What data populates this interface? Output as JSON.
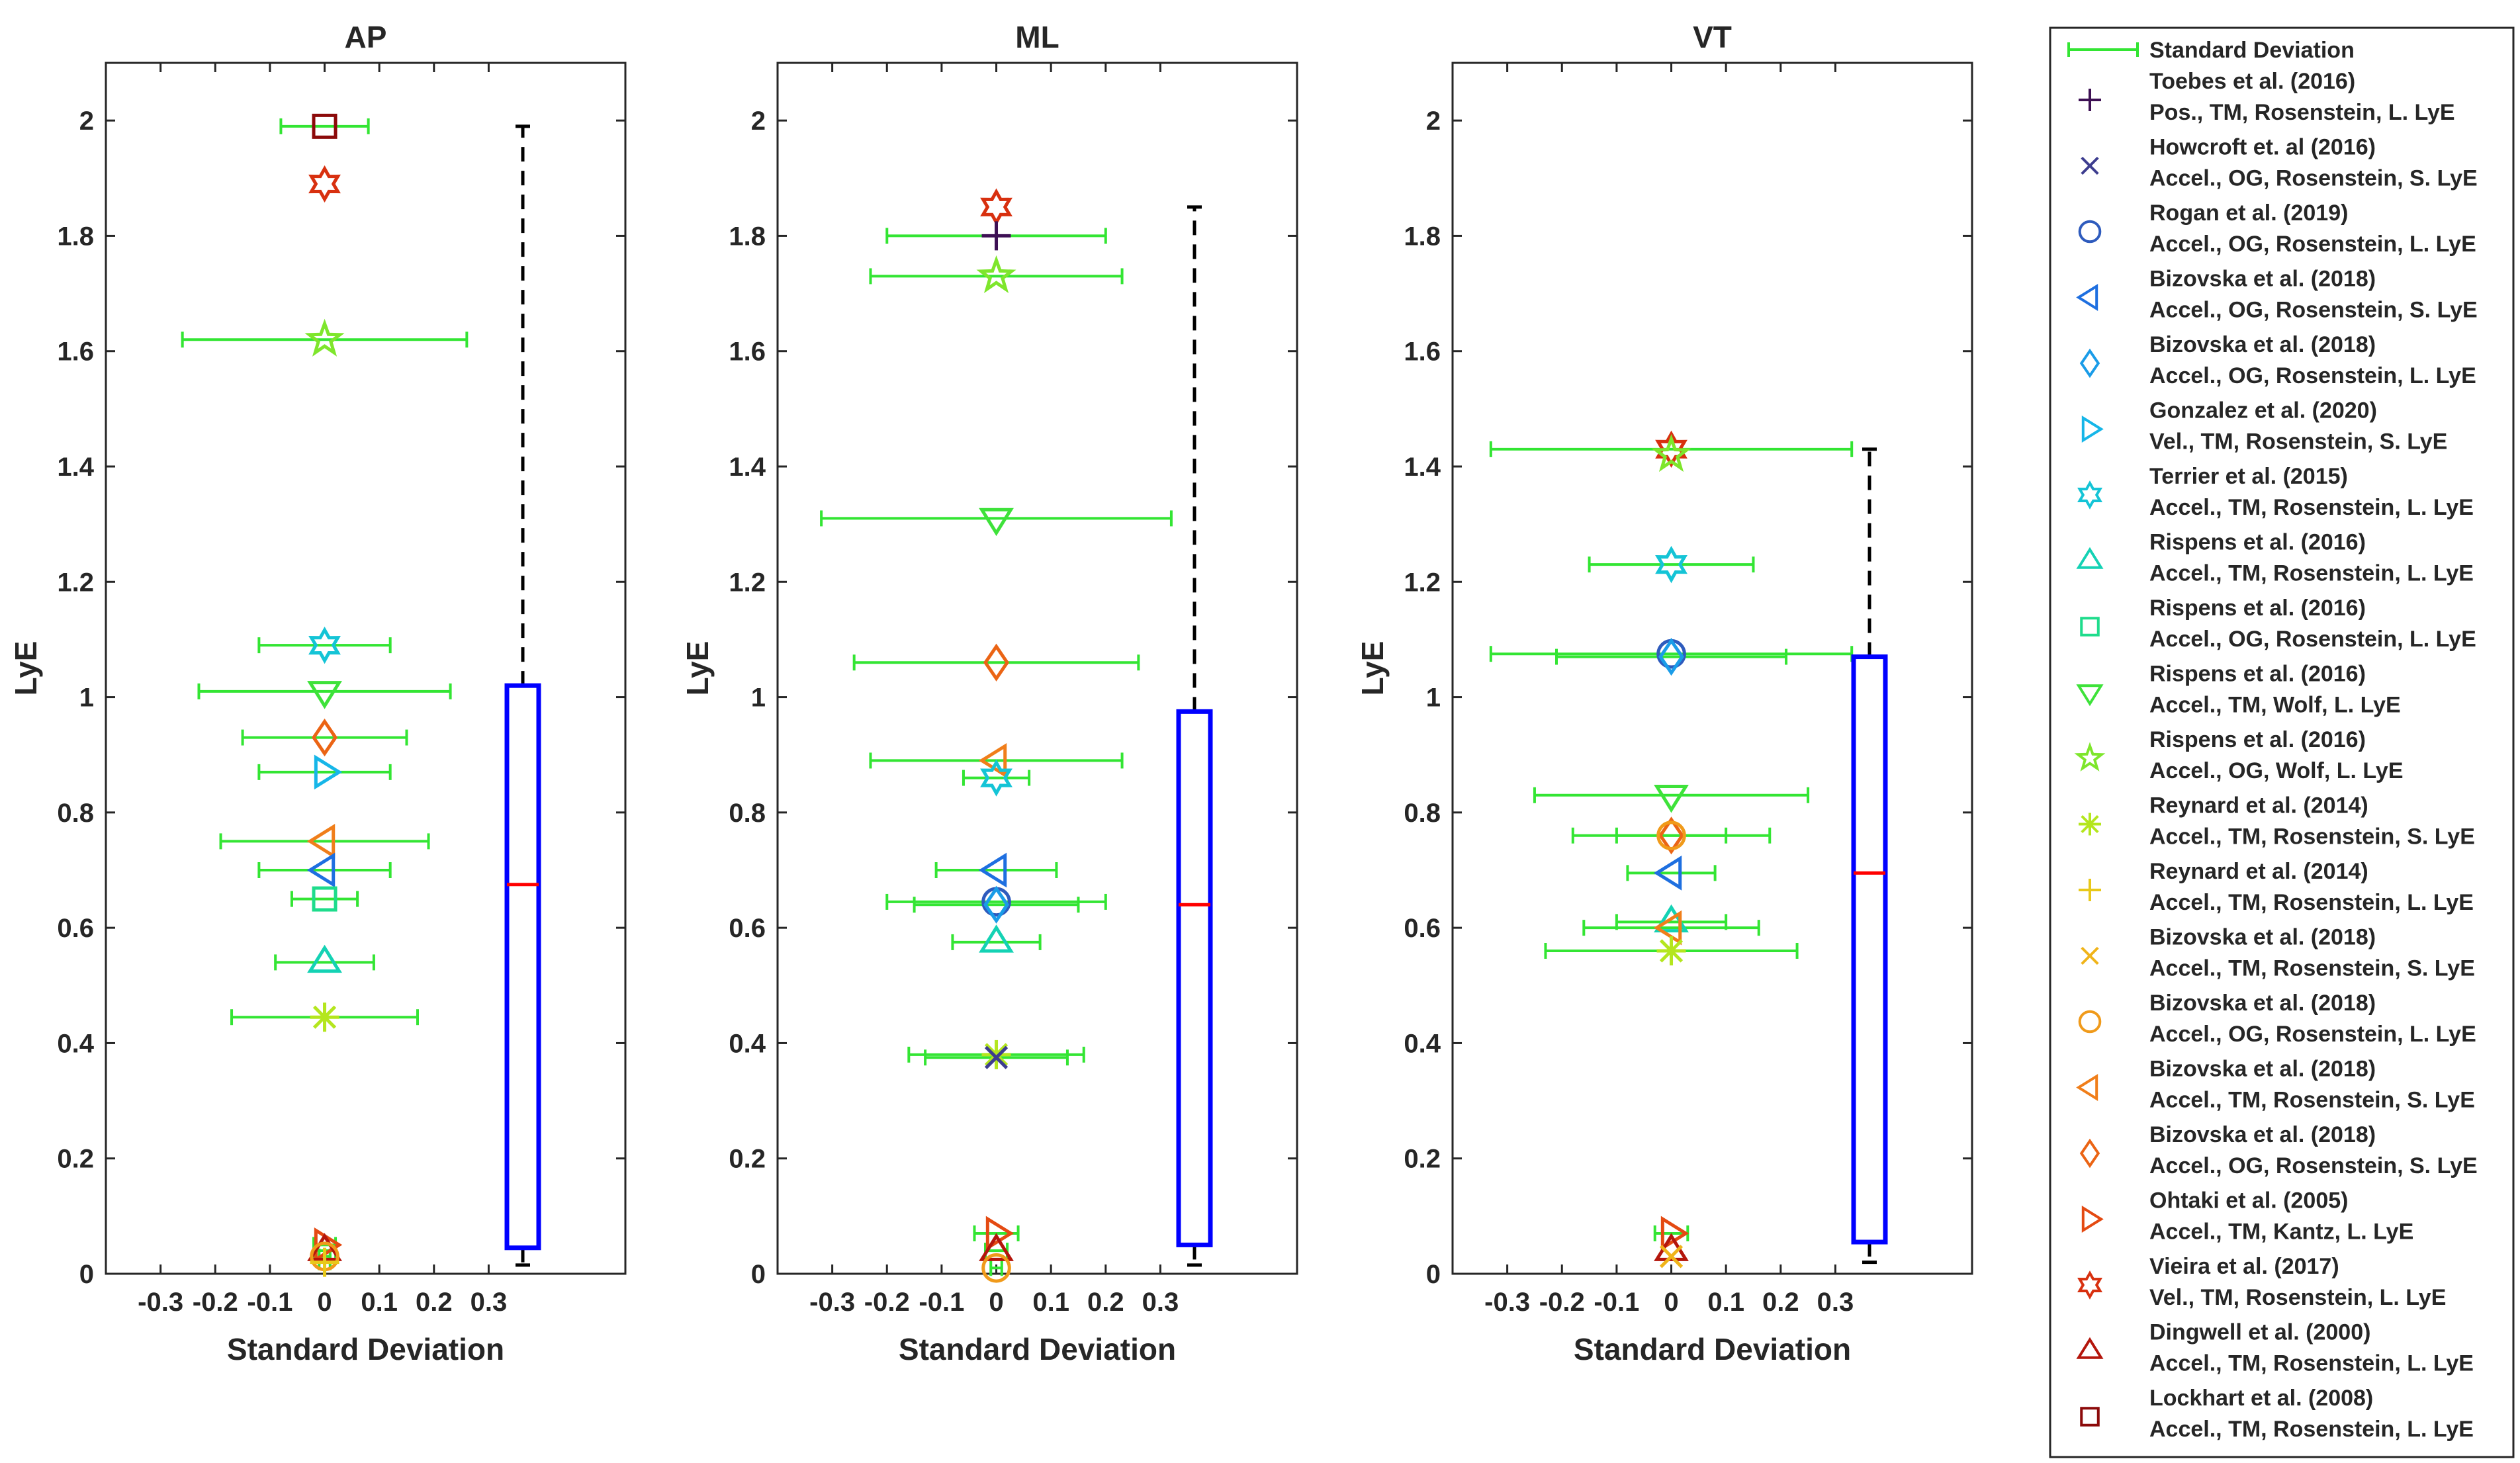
{
  "chart_data": {
    "type": "scatter",
    "common": {
      "ylabel": "LyE",
      "xlabel": "Standard Deviation",
      "xlim": [
        -0.4,
        0.55
      ],
      "ylim": [
        0,
        2.1
      ],
      "xticks": [
        -0.3,
        -0.2,
        -0.1,
        0,
        0.1,
        0.2,
        0.3
      ],
      "xtick_labels": [
        "-0.3",
        "-0.2",
        "-0.1",
        "0",
        "0.1",
        "0.2",
        "0.3"
      ],
      "yticks": [
        0,
        0.2,
        0.4,
        0.6,
        0.8,
        1,
        1.2,
        1.4,
        1.6,
        1.8,
        2
      ],
      "ytick_labels": [
        "0",
        "0.2",
        "0.4",
        "0.6",
        "0.8",
        "1",
        "1.2",
        "1.4",
        "1.6",
        "1.8",
        "2"
      ]
    },
    "styles": [
      {
        "marker": "plus",
        "color": "#3d1054"
      },
      {
        "marker": "x",
        "color": "#3d3d8f"
      },
      {
        "marker": "circle",
        "color": "#2e5bbd"
      },
      {
        "marker": "tri-left",
        "color": "#1e6fe0"
      },
      {
        "marker": "diamond",
        "color": "#1a9ce8"
      },
      {
        "marker": "tri-right",
        "color": "#16b6e8"
      },
      {
        "marker": "hexagram",
        "color": "#14c4d6"
      },
      {
        "marker": "tri-up",
        "color": "#14d2b4"
      },
      {
        "marker": "square",
        "color": "#1edc8c"
      },
      {
        "marker": "tri-down",
        "color": "#3ee23a"
      },
      {
        "marker": "pentagram",
        "color": "#7ee62c"
      },
      {
        "marker": "asterisk",
        "color": "#b4e61e"
      },
      {
        "marker": "plus",
        "color": "#e8c81a"
      },
      {
        "marker": "x",
        "color": "#f0b41a"
      },
      {
        "marker": "circle",
        "color": "#f09a1a"
      },
      {
        "marker": "tri-left",
        "color": "#f07e1a"
      },
      {
        "marker": "diamond",
        "color": "#eb6414"
      },
      {
        "marker": "tri-right",
        "color": "#e44a12"
      },
      {
        "marker": "hexagram",
        "color": "#d8300f"
      },
      {
        "marker": "tri-up",
        "color": "#b4160c"
      },
      {
        "marker": "square",
        "color": "#8c0a0a"
      }
    ],
    "panels": [
      {
        "title": "AP",
        "points": [
          {
            "s": 18,
            "y": 1.89,
            "sd": 0
          },
          {
            "s": 20,
            "y": 1.99,
            "sd": 0.08
          },
          {
            "s": 10,
            "y": 1.62,
            "sd": 0.26
          },
          {
            "s": 6,
            "y": 1.09,
            "sd": 0.12
          },
          {
            "s": 9,
            "y": 1.01,
            "sd": 0.23
          },
          {
            "s": 16,
            "y": 0.93,
            "sd": 0.15
          },
          {
            "s": 5,
            "y": 0.87,
            "sd": 0.12
          },
          {
            "s": 15,
            "y": 0.75,
            "sd": 0.19
          },
          {
            "s": 3,
            "y": 0.7,
            "sd": 0.12
          },
          {
            "s": 8,
            "y": 0.65,
            "sd": 0.06
          },
          {
            "s": 7,
            "y": 0.54,
            "sd": 0.09
          },
          {
            "s": 11,
            "y": 0.445,
            "sd": 0.17
          },
          {
            "s": 17,
            "y": 0.05,
            "sd": 0.02
          },
          {
            "s": 19,
            "y": 0.04,
            "sd": 0.02
          },
          {
            "s": 14,
            "y": 0.03,
            "sd": 0.01
          },
          {
            "s": 12,
            "y": 0.02,
            "sd": 0.01
          }
        ],
        "box": {
          "min": 0.015,
          "q1": 0.045,
          "median": 0.675,
          "q3": 1.02,
          "max": 1.99
        }
      },
      {
        "title": "ML",
        "points": [
          {
            "s": 18,
            "y": 1.85,
            "sd": 0
          },
          {
            "s": 0,
            "y": 1.8,
            "sd": 0.2
          },
          {
            "s": 10,
            "y": 1.73,
            "sd": 0.23
          },
          {
            "s": 9,
            "y": 1.31,
            "sd": 0.32
          },
          {
            "s": 16,
            "y": 1.06,
            "sd": 0.26
          },
          {
            "s": 15,
            "y": 0.89,
            "sd": 0.23
          },
          {
            "s": 6,
            "y": 0.86,
            "sd": 0.06
          },
          {
            "s": 3,
            "y": 0.7,
            "sd": 0.11
          },
          {
            "s": 2,
            "y": 0.645,
            "sd": 0.2
          },
          {
            "s": 4,
            "y": 0.64,
            "sd": 0.15
          },
          {
            "s": 7,
            "y": 0.575,
            "sd": 0.08
          },
          {
            "s": 11,
            "y": 0.38,
            "sd": 0.16
          },
          {
            "s": 1,
            "y": 0.375,
            "sd": 0.13
          },
          {
            "s": 17,
            "y": 0.07,
            "sd": 0.04
          },
          {
            "s": 19,
            "y": 0.04,
            "sd": 0.02
          },
          {
            "s": 14,
            "y": 0.01,
            "sd": 0.01
          }
        ],
        "box": {
          "min": 0.015,
          "q1": 0.05,
          "median": 0.64,
          "q3": 0.975,
          "max": 1.85
        }
      },
      {
        "title": "VT",
        "points": [
          {
            "s": 18,
            "y": 1.43,
            "sd": 0.33
          },
          {
            "s": 10,
            "y": 1.42,
            "sd": 0
          },
          {
            "s": 6,
            "y": 1.23,
            "sd": 0.15
          },
          {
            "s": 2,
            "y": 1.075,
            "sd": 0.33
          },
          {
            "s": 4,
            "y": 1.07,
            "sd": 0.21
          },
          {
            "s": 9,
            "y": 0.83,
            "sd": 0.25
          },
          {
            "s": 16,
            "y": 0.76,
            "sd": 0.18
          },
          {
            "s": 14,
            "y": 0.76,
            "sd": 0.1
          },
          {
            "s": 3,
            "y": 0.695,
            "sd": 0.08
          },
          {
            "s": 7,
            "y": 0.61,
            "sd": 0.1
          },
          {
            "s": 15,
            "y": 0.6,
            "sd": 0.16
          },
          {
            "s": 11,
            "y": 0.56,
            "sd": 0.23
          },
          {
            "s": 17,
            "y": 0.07,
            "sd": 0.03
          },
          {
            "s": 19,
            "y": 0.04,
            "sd": 0
          },
          {
            "s": 13,
            "y": 0.03,
            "sd": 0
          }
        ],
        "box": {
          "min": 0.02,
          "q1": 0.055,
          "median": 0.695,
          "q3": 1.07,
          "max": 1.43
        }
      }
    ],
    "legend": {
      "sd_label": "Standard Deviation",
      "sd_color": "#33e533",
      "placement": "right, outside",
      "entries": [
        {
          "line1": "Toebes et al. (2016)",
          "line2": "Pos., TM, Rosenstein, L. LyE"
        },
        {
          "line1": "Howcroft et. al (2016)",
          "line2": "Accel., OG, Rosenstein, S. LyE"
        },
        {
          "line1": "Rogan et al. (2019)",
          "line2": "Accel., OG, Rosenstein, L. LyE"
        },
        {
          "line1": "Bizovska et al. (2018)",
          "line2": "Accel., OG, Rosenstein, S. LyE"
        },
        {
          "line1": "Bizovska et al. (2018)",
          "line2": "Accel., OG, Rosenstein, L. LyE"
        },
        {
          "line1": "Gonzalez et al. (2020)",
          "line2": "Vel., TM, Rosenstein, S. LyE"
        },
        {
          "line1": "Terrier et al. (2015)",
          "line2": "Accel., TM, Rosenstein, L. LyE"
        },
        {
          "line1": "Rispens et al. (2016)",
          "line2": "Accel., TM, Rosenstein, L. LyE"
        },
        {
          "line1": "Rispens et al. (2016)",
          "line2": "Accel., OG, Rosenstein, L. LyE"
        },
        {
          "line1": "Rispens et al. (2016)",
          "line2": "Accel., TM, Wolf, L. LyE"
        },
        {
          "line1": "Rispens et al. (2016)",
          "line2": "Accel., OG, Wolf, L. LyE"
        },
        {
          "line1": "Reynard et al. (2014)",
          "line2": "Accel., TM, Rosenstein, S. LyE"
        },
        {
          "line1": "Reynard et al. (2014)",
          "line2": "Accel., TM, Rosenstein, L. LyE"
        },
        {
          "line1": "Bizovska et al. (2018)",
          "line2": "Accel., TM, Rosenstein, S. LyE"
        },
        {
          "line1": "Bizovska et al. (2018)",
          "line2": "Accel., OG, Rosenstein, L. LyE"
        },
        {
          "line1": "Bizovska et al. (2018)",
          "line2": "Accel., TM, Rosenstein, S. LyE"
        },
        {
          "line1": "Bizovska et al. (2018)",
          "line2": "Accel., OG, Rosenstein, S. LyE"
        },
        {
          "line1": "Ohtaki et al. (2005)",
          "line2": "Accel., TM, Kantz, L. LyE"
        },
        {
          "line1": "Vieira et al. (2017)",
          "line2": "Vel., TM, Rosenstein, L. LyE"
        },
        {
          "line1": "Dingwell et al. (2000)",
          "line2": "Accel., TM, Rosenstein, L. LyE"
        },
        {
          "line1": "Lockhart et al. (2008)",
          "line2": "Accel., TM, Rosenstein, L. LyE"
        }
      ]
    },
    "colors": {
      "errorbar": "#33e533",
      "box": "#0000ff",
      "median": "#ff0000",
      "whisker": "#000000"
    }
  }
}
